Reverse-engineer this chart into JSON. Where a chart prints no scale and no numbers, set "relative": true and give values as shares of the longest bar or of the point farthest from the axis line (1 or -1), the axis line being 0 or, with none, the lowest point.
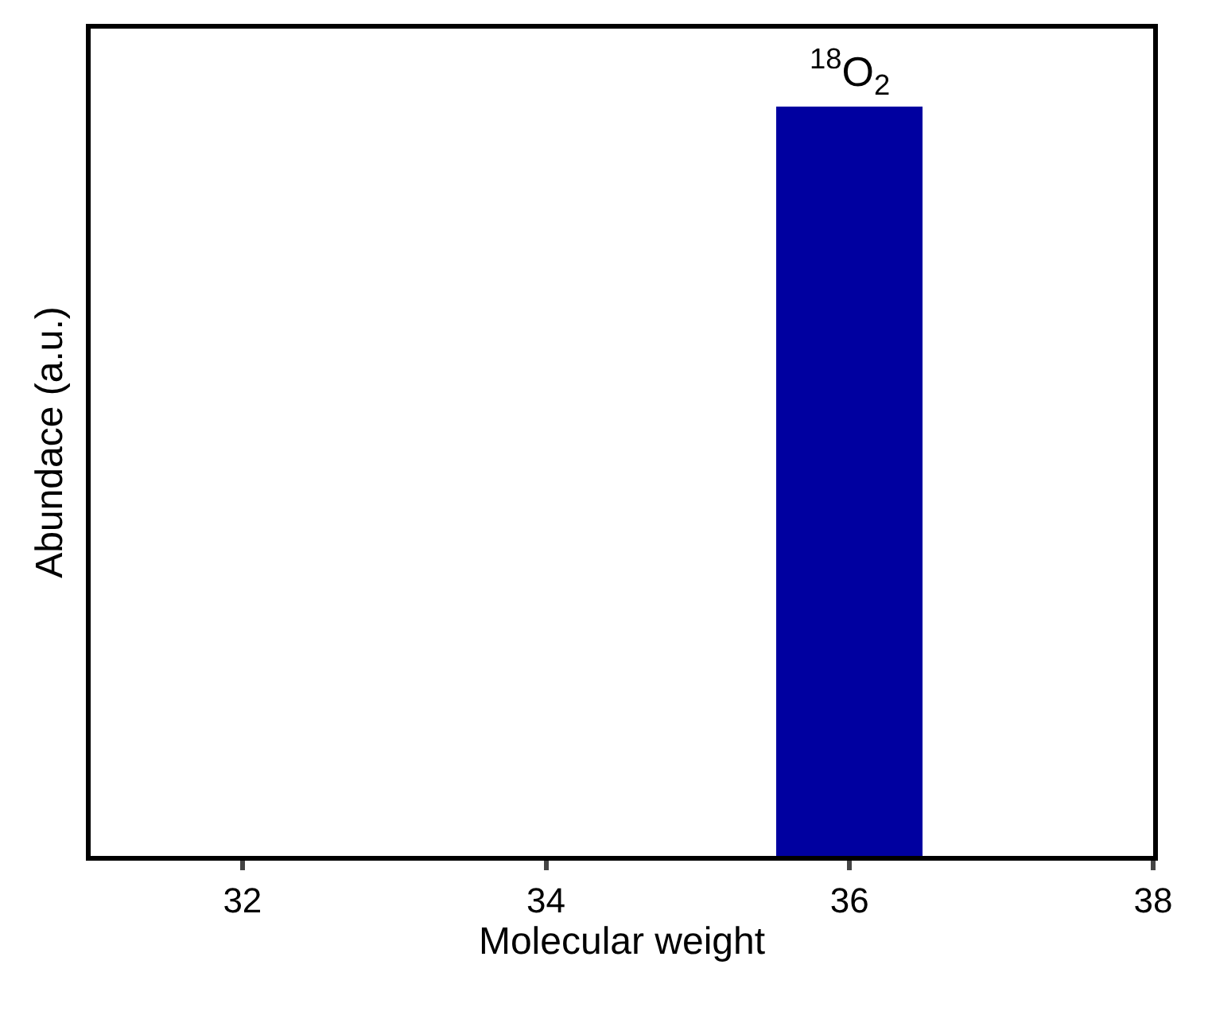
{
  "chart_data": {
    "type": "bar",
    "relative": true,
    "xlabel": "Molecular weight",
    "ylabel": "Abundace (a.u.)",
    "x": [
      36
    ],
    "values": [
      1
    ],
    "color": "#0000a0",
    "xlim": [
      31,
      38
    ],
    "xticks": [
      32,
      34,
      36,
      38
    ],
    "annotations": [
      {
        "text": "$^{18}$O$_{2}$",
        "x": 36,
        "y": 1
      }
    ]
  }
}
